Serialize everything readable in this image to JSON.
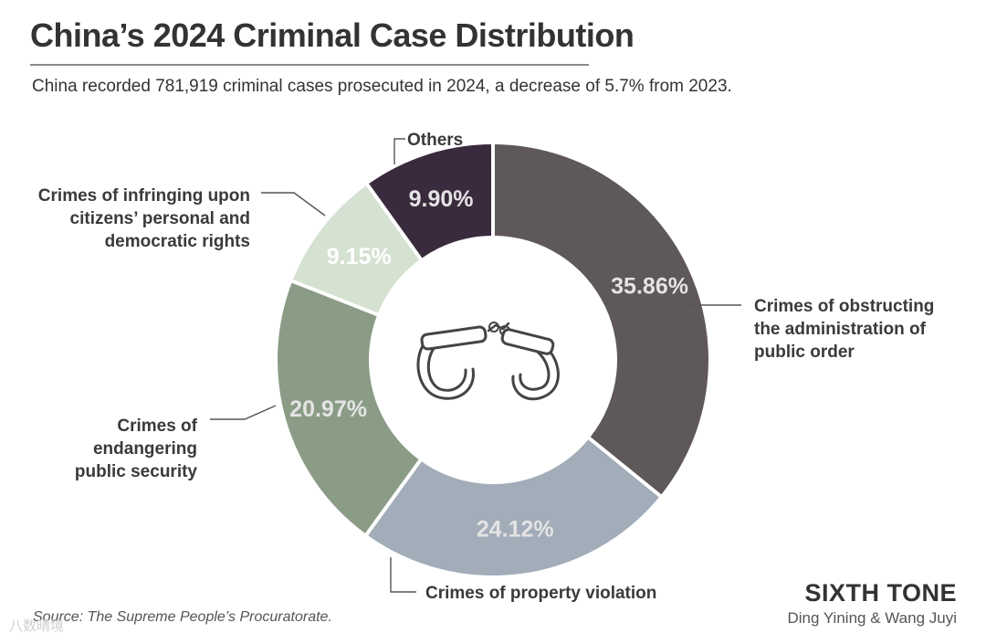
{
  "header": {
    "title": "China’s 2024 Criminal Case Distribution",
    "subtitle": "China recorded 781,919 criminal cases prosecuted in 2024, a decrease of 5.7% from 2023."
  },
  "chart_data": {
    "type": "pie",
    "variant": "donut",
    "title": "China’s 2024 Criminal Case Distribution",
    "unit": "%",
    "slices": [
      {
        "label_lines": [
          "Crimes of obstructing",
          "the administration of",
          "public order"
        ],
        "value": 35.86,
        "value_label": "35.86%",
        "color": "#5f5858"
      },
      {
        "label_lines": [
          "Crimes of property violation"
        ],
        "value": 24.12,
        "value_label": "24.12%",
        "color": "#a2adb9"
      },
      {
        "label_lines": [
          "Crimes of",
          "endangering",
          "public security"
        ],
        "value": 20.97,
        "value_label": "20.97%",
        "color": "#8a9c86"
      },
      {
        "label_lines": [
          "Crimes of infringing upon",
          "citizens’ personal and",
          "democratic rights"
        ],
        "value": 9.15,
        "value_label": "9.15%",
        "color": "#d5e1d1"
      },
      {
        "label_lines": [
          "Others"
        ],
        "value": 9.9,
        "value_label": "9.90%",
        "color": "#3a2a3d"
      }
    ],
    "center_icon": "handcuffs-icon"
  },
  "footer": {
    "source": "Source: The Supreme People’s Procuratorate.",
    "brand": "SIXTH TONE",
    "authors": "Ding Yining & Wang Juyi",
    "watermark": "八数晴境"
  }
}
